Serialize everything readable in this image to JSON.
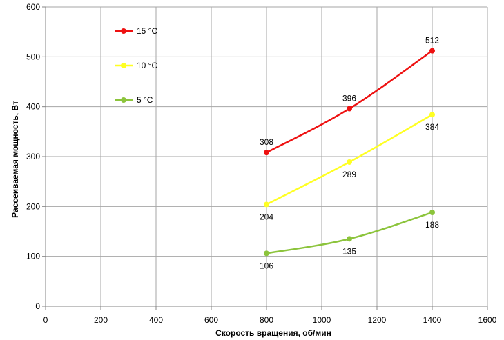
{
  "chart_data": {
    "type": "line",
    "title": "",
    "xlabel": "Скорость вращения, об/мин",
    "ylabel": "Рассеиваемая мощность, Вт",
    "xlim": [
      0,
      1600
    ],
    "ylim": [
      0,
      600
    ],
    "x_ticks": [
      0,
      200,
      400,
      600,
      800,
      1000,
      1200,
      1400,
      1600
    ],
    "y_ticks": [
      0,
      100,
      200,
      300,
      400,
      500,
      600
    ],
    "grid": true,
    "legend_position": "top-left",
    "series": [
      {
        "name": "15 °C",
        "color": "#ee1111",
        "x": [
          800,
          1100,
          1400
        ],
        "values": [
          308,
          396,
          512
        ],
        "labels": [
          "308",
          "396",
          "512"
        ],
        "label_position": "above"
      },
      {
        "name": "10 °C",
        "color": "#ffff22",
        "x": [
          800,
          1100,
          1400
        ],
        "values": [
          204,
          289,
          384
        ],
        "labels": [
          "204",
          "289",
          "384"
        ],
        "label_position": "below"
      },
      {
        "name": "5 °C",
        "color": "#8cc43c",
        "x": [
          800,
          1100,
          1400
        ],
        "values": [
          106,
          135,
          188
        ],
        "labels": [
          "106",
          "135",
          "188"
        ],
        "label_position": "below"
      }
    ]
  }
}
